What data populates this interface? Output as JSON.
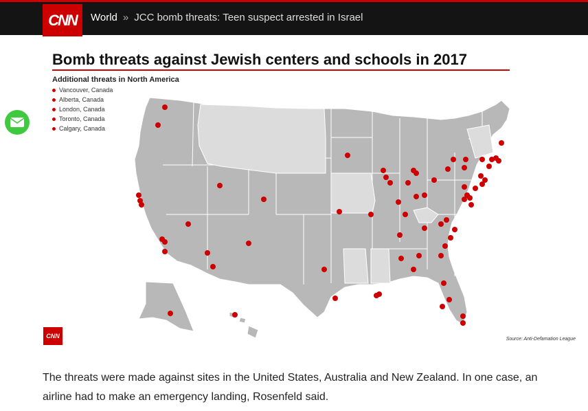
{
  "header": {
    "logo_text": "CNN",
    "section": "World",
    "separator": "»",
    "headline": "JCC bomb threats: Teen suspect arrested in Israel"
  },
  "figure": {
    "title": "Bomb threats against Jewish centers and schools in 2017",
    "legend_title": "Additional threats in North America",
    "legend_items": [
      "Vancouver, Canada",
      "Alberta, Canada",
      "London, Canada",
      "Toronto, Canada",
      "Calgary, Canada"
    ],
    "logo_text": "CNN",
    "source": "Source: Anti-Defamation League",
    "accent_color": "#cc0000",
    "state_color": "#b8b8b8",
    "light_state_color": "#dcdcdc"
  },
  "share": {
    "icon": "mail-icon"
  },
  "caption": "The threats were made against sites in the United States, Australia and New Zealand. In one case, an airline had to make an emergency landing, Rosenfeld said."
}
